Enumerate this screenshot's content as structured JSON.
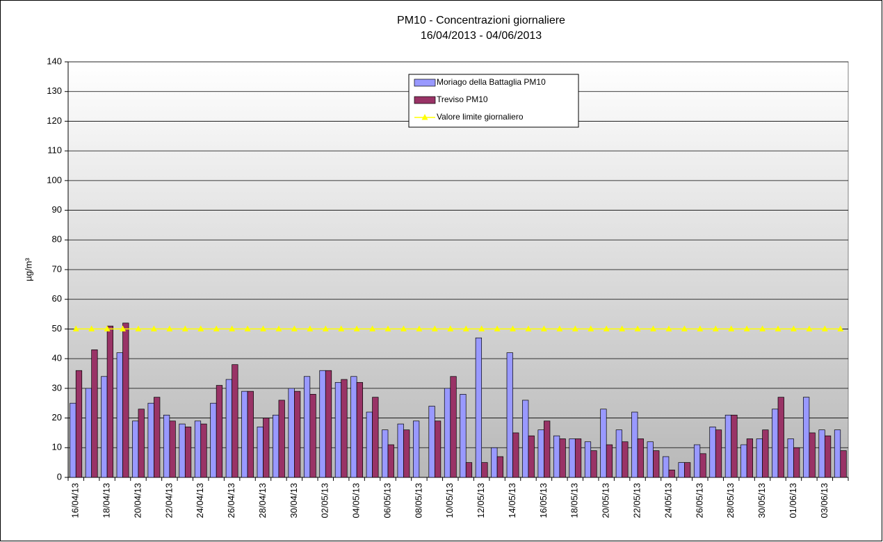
{
  "chart_data": {
    "type": "bar",
    "title": "PM10 - Concentrazioni giornaliere",
    "subtitle": "16/04/2013 - 04/06/2013",
    "y_label": "µg/m³",
    "categories": [
      "16/04/13",
      null,
      "18/04/13",
      null,
      "20/04/13",
      null,
      "22/04/13",
      null,
      "24/04/13",
      null,
      "26/04/13",
      null,
      "28/04/13",
      null,
      "30/04/13",
      null,
      "02/05/13",
      null,
      "04/05/13",
      null,
      "06/05/13",
      null,
      "08/05/13",
      null,
      "10/05/13",
      null,
      "12/05/13",
      null,
      "14/05/13",
      null,
      "16/05/13",
      null,
      "18/05/13",
      null,
      "20/05/13",
      null,
      "22/05/13",
      null,
      "24/05/13",
      null,
      "26/05/13",
      null,
      "28/05/13",
      null,
      "30/05/13",
      null,
      "01/06/13",
      null,
      "03/06/13",
      null
    ],
    "series": [
      {
        "name": "Moriago della Battaglia PM10",
        "color": "#9999ff",
        "values": [
          25,
          30,
          34,
          42,
          19,
          25,
          21,
          18,
          19,
          25,
          33,
          29,
          17,
          21,
          30,
          34,
          36,
          32,
          34,
          22,
          16,
          18,
          19,
          24,
          30,
          28,
          47,
          10,
          42,
          26,
          16,
          14,
          13,
          12,
          23,
          16,
          22,
          12,
          7,
          5,
          11,
          17,
          21,
          11,
          13,
          23,
          13,
          27,
          16,
          16
        ]
      },
      {
        "name": "Treviso PM10",
        "color": "#993366",
        "values": [
          36,
          43,
          51,
          52,
          23,
          27,
          19,
          17,
          18,
          31,
          38,
          29,
          20,
          26,
          29,
          28,
          36,
          33,
          32,
          27,
          11,
          16,
          null,
          19,
          34,
          5,
          5,
          7,
          15,
          14,
          19,
          13,
          13,
          9,
          11,
          12,
          13,
          9,
          2.5,
          5,
          8,
          16,
          21,
          13,
          16,
          27,
          10,
          15,
          14,
          9
        ]
      },
      {
        "name": "Valore limite giornaliero",
        "color": "#ffff00",
        "type": "line",
        "values": [
          50,
          50,
          50,
          50,
          50,
          50,
          50,
          50,
          50,
          50,
          50,
          50,
          50,
          50,
          50,
          50,
          50,
          50,
          50,
          50,
          50,
          50,
          50,
          50,
          50,
          50,
          50,
          50,
          50,
          50,
          50,
          50,
          50,
          50,
          50,
          50,
          50,
          50,
          50,
          50,
          50,
          50,
          50,
          50,
          50,
          50,
          50,
          50,
          50,
          50
        ]
      }
    ],
    "ylim": [
      0,
      140
    ],
    "yticks": [
      0,
      10,
      20,
      30,
      40,
      50,
      60,
      70,
      80,
      90,
      100,
      110,
      120,
      130,
      140
    ],
    "grid": true
  }
}
